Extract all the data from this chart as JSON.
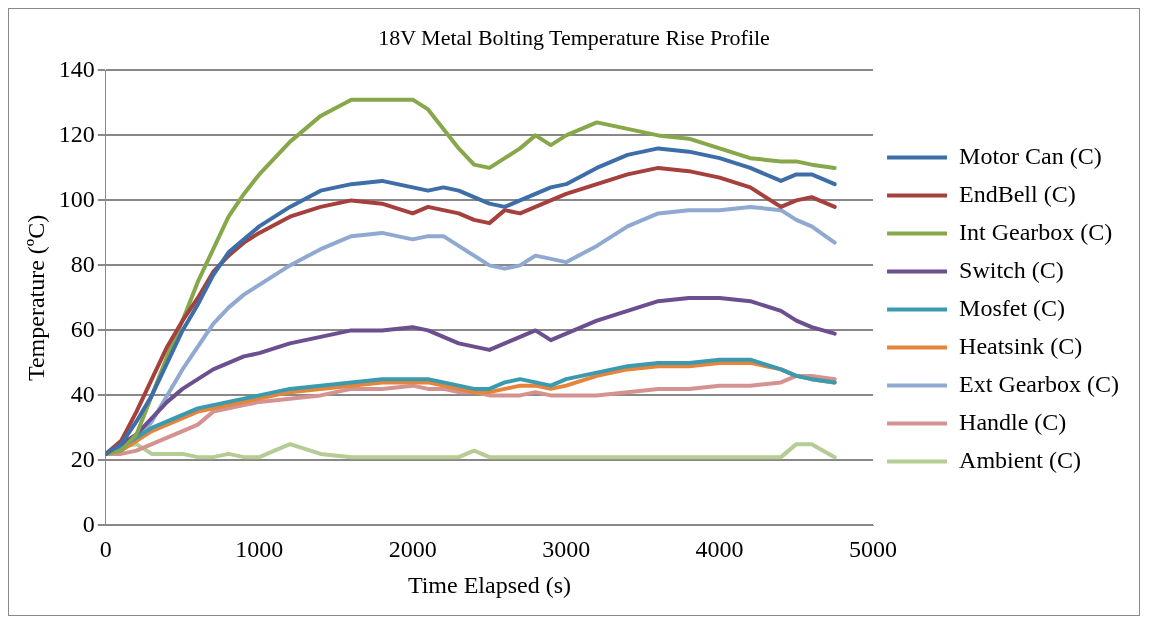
{
  "chart_data": {
    "type": "line",
    "title": "18V Metal Bolting Temperature Rise Profile",
    "xlabel": "Time Elapsed (s)",
    "ylabel": "Temperature (ºC)",
    "x": [
      0,
      100,
      200,
      300,
      400,
      500,
      600,
      700,
      800,
      900,
      1000,
      1200,
      1400,
      1600,
      1800,
      2000,
      2100,
      2200,
      2300,
      2400,
      2500,
      2600,
      2700,
      2800,
      2900,
      3000,
      3200,
      3400,
      3600,
      3800,
      4000,
      4200,
      4400,
      4500,
      4600,
      4750
    ],
    "xlim": [
      0,
      5000
    ],
    "xticks": [
      0,
      1000,
      2000,
      3000,
      4000,
      5000
    ],
    "ylim": [
      0,
      140
    ],
    "yticks": [
      0,
      20,
      40,
      60,
      80,
      100,
      120,
      140
    ],
    "grid": "y",
    "legend": "right",
    "marker": "none",
    "line_style": "solid",
    "series": [
      {
        "name": "Motor Can (C)",
        "color": "#3d6ea8",
        "values": [
          22,
          25,
          32,
          40,
          50,
          60,
          68,
          77,
          84,
          88,
          92,
          98,
          103,
          105,
          106,
          104,
          103,
          104,
          103,
          101,
          99,
          98,
          100,
          102,
          104,
          105,
          110,
          114,
          116,
          115,
          113,
          110,
          106,
          108,
          108,
          105
        ]
      },
      {
        "name": "EndBell (C)",
        "color": "#a5403d",
        "values": [
          22,
          26,
          35,
          45,
          55,
          63,
          70,
          78,
          83,
          87,
          90,
          95,
          98,
          100,
          99,
          96,
          98,
          97,
          96,
          94,
          93,
          97,
          96,
          98,
          100,
          102,
          105,
          108,
          110,
          109,
          107,
          104,
          98,
          100,
          101,
          98
        ]
      },
      {
        "name": "Int Gearbox (C)",
        "color": "#87a84a",
        "values": [
          22,
          23,
          28,
          40,
          52,
          63,
          75,
          85,
          95,
          102,
          108,
          118,
          126,
          131,
          131,
          131,
          128,
          122,
          116,
          111,
          110,
          113,
          116,
          120,
          117,
          120,
          124,
          122,
          120,
          119,
          116,
          113,
          112,
          112,
          111,
          110
        ]
      },
      {
        "name": "Switch (C)",
        "color": "#6b4f8f",
        "values": [
          22,
          25,
          28,
          33,
          38,
          42,
          45,
          48,
          50,
          52,
          53,
          56,
          58,
          60,
          60,
          61,
          60,
          58,
          56,
          55,
          54,
          56,
          58,
          60,
          57,
          59,
          63,
          66,
          69,
          70,
          70,
          69,
          66,
          63,
          61,
          59
        ]
      },
      {
        "name": "Mosfet (C)",
        "color": "#3a9bb0",
        "values": [
          22,
          24,
          27,
          30,
          32,
          34,
          36,
          37,
          38,
          39,
          40,
          42,
          43,
          44,
          45,
          45,
          45,
          44,
          43,
          42,
          42,
          44,
          45,
          44,
          43,
          45,
          47,
          49,
          50,
          50,
          51,
          51,
          48,
          46,
          45,
          44
        ]
      },
      {
        "name": "Heatsink (C)",
        "color": "#e6853a",
        "values": [
          22,
          23,
          26,
          29,
          31,
          33,
          35,
          36,
          37,
          38,
          39,
          41,
          42,
          43,
          44,
          44,
          44,
          43,
          42,
          41,
          41,
          42,
          43,
          43,
          42,
          43,
          46,
          48,
          49,
          49,
          50,
          50,
          48,
          46,
          45,
          44
        ]
      },
      {
        "name": "Ext Gearbox (C)",
        "color": "#8fa9d1",
        "values": [
          null,
          null,
          26,
          32,
          40,
          48,
          55,
          62,
          67,
          71,
          74,
          80,
          85,
          89,
          90,
          88,
          89,
          89,
          86,
          83,
          80,
          79,
          80,
          83,
          82,
          81,
          86,
          92,
          96,
          97,
          97,
          98,
          97,
          94,
          92,
          87
        ]
      },
      {
        "name": "Handle (C)",
        "color": "#d49390",
        "values": [
          22,
          22,
          23,
          25,
          27,
          29,
          31,
          35,
          36,
          37,
          38,
          39,
          40,
          42,
          42,
          43,
          42,
          42,
          41,
          41,
          40,
          40,
          40,
          41,
          40,
          40,
          40,
          41,
          42,
          42,
          43,
          43,
          44,
          46,
          46,
          45
        ]
      },
      {
        "name": "Ambient (C)",
        "color": "#b5cc94",
        "values": [
          22,
          24,
          25,
          22,
          22,
          22,
          21,
          21,
          22,
          21,
          21,
          25,
          22,
          21,
          21,
          21,
          21,
          21,
          21,
          23,
          21,
          21,
          21,
          21,
          21,
          21,
          21,
          21,
          21,
          21,
          21,
          21,
          21,
          25,
          25,
          21
        ]
      }
    ]
  }
}
